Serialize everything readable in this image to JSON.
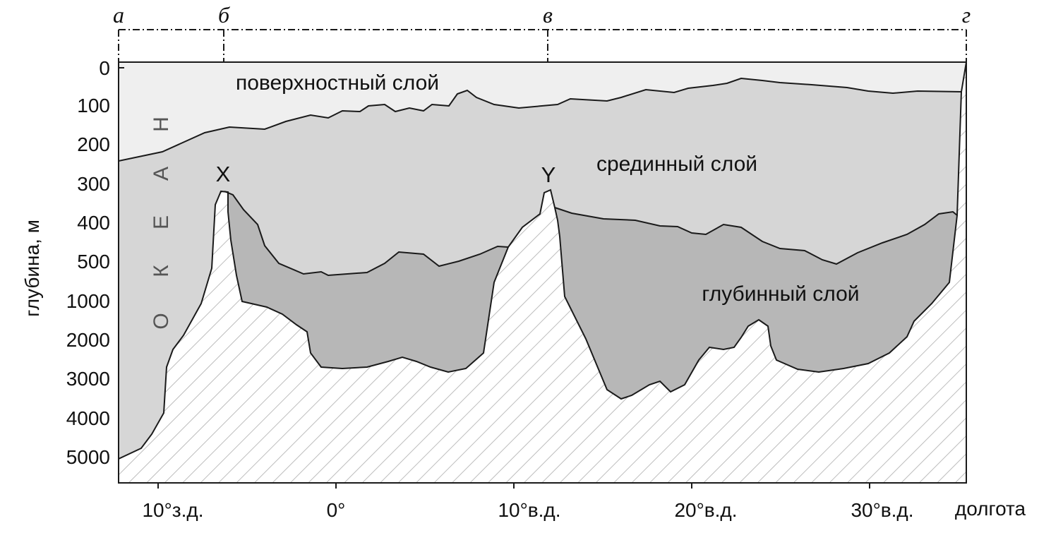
{
  "profile_points": {
    "a": "а",
    "b": "б",
    "v": "в",
    "g": "г"
  },
  "y_axis": {
    "label": "глубина, м",
    "ticks": [
      "0",
      "100",
      "200",
      "300",
      "400",
      "500",
      "1000",
      "2000",
      "3000",
      "4000",
      "5000"
    ]
  },
  "x_axis": {
    "label": "долгота",
    "ticks": [
      "10°з.д.",
      "0°",
      "10°в.д.",
      "20°в.д.",
      "30°в.д."
    ]
  },
  "layers": {
    "surface": "поверхностный слой",
    "middle": "срединный слой",
    "deep": "глубинный слой"
  },
  "peaks": {
    "x": "X",
    "y": "Y"
  },
  "ocean_letters": [
    "Н",
    "А",
    "Е",
    "К",
    "О"
  ],
  "colors": {
    "surface_layer": "#efefef",
    "middle_layer": "#d6d6d6",
    "deep_layer": "#b7b7b7",
    "seabed_hatch": "#bdbdbd",
    "outline": "#1a1a1a"
  }
}
